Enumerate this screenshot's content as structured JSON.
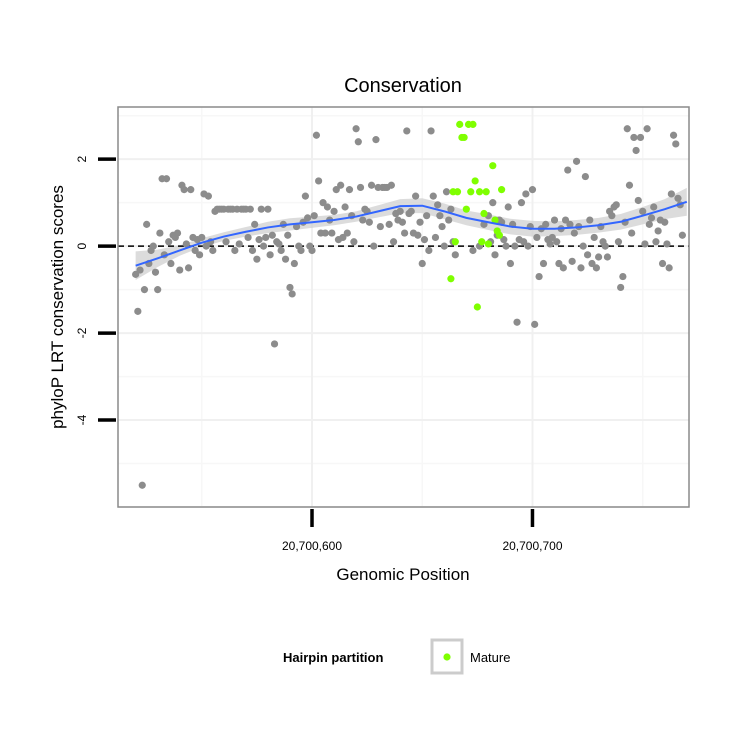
{
  "chart_data": {
    "type": "scatter",
    "title": "Conservation",
    "xlabel": "Genomic Position",
    "ylabel": "phyloP LRT conservation scores",
    "xlim": [
      20700512,
      20700771
    ],
    "ylim": [
      -6.0,
      3.2
    ],
    "x_ticks": [
      20700600,
      20700700
    ],
    "x_tick_labels": [
      "20,700,600",
      "20,700,700"
    ],
    "y_ticks": [
      2,
      0,
      -2,
      -4
    ],
    "y_tick_labels": [
      "2",
      "0",
      "-2",
      "-4"
    ],
    "grid": true,
    "reference_line": {
      "y": 0,
      "style": "dashed"
    },
    "legend": {
      "title": "Hairpin partition",
      "position": "bottom",
      "entries": [
        {
          "label": "Mature",
          "color": "#7fff00"
        }
      ]
    },
    "colors": {
      "other": "#8c8c8c",
      "mature": "#7fff00",
      "smooth": "#3366ff",
      "band": "#d0d0d0"
    },
    "series": [
      {
        "group": "other",
        "points": [
          [
            20700520,
            -0.65
          ],
          [
            20700521,
            -1.5
          ],
          [
            20700522,
            -0.55
          ],
          [
            20700523,
            -5.5
          ],
          [
            20700524,
            -1.0
          ],
          [
            20700525,
            0.5
          ],
          [
            20700526,
            -0.4
          ],
          [
            20700527,
            -0.1
          ],
          [
            20700528,
            0.0
          ],
          [
            20700529,
            -0.6
          ],
          [
            20700530,
            -1.0
          ],
          [
            20700531,
            0.3
          ],
          [
            20700532,
            1.55
          ],
          [
            20700533,
            -0.2
          ],
          [
            20700534,
            1.55
          ],
          [
            20700535,
            0.1
          ],
          [
            20700536,
            -0.4
          ],
          [
            20700537,
            0.25
          ],
          [
            20700538,
            0.2
          ],
          [
            20700539,
            0.3
          ],
          [
            20700540,
            -0.55
          ],
          [
            20700541,
            1.4
          ],
          [
            20700542,
            1.3
          ],
          [
            20700543,
            0.05
          ],
          [
            20700544,
            -0.5
          ],
          [
            20700545,
            1.3
          ],
          [
            20700546,
            0.2
          ],
          [
            20700547,
            -0.1
          ],
          [
            20700548,
            0.15
          ],
          [
            20700549,
            -0.2
          ],
          [
            20700550,
            0.2
          ],
          [
            20700551,
            1.2
          ],
          [
            20700552,
            0.0
          ],
          [
            20700553,
            1.15
          ],
          [
            20700554,
            0.1
          ],
          [
            20700555,
            -0.1
          ],
          [
            20700556,
            0.8
          ],
          [
            20700557,
            0.85
          ],
          [
            20700558,
            0.85
          ],
          [
            20700559,
            0.85
          ],
          [
            20700560,
            0.85
          ],
          [
            20700561,
            0.1
          ],
          [
            20700562,
            0.85
          ],
          [
            20700563,
            0.85
          ],
          [
            20700564,
            0.85
          ],
          [
            20700565,
            -0.1
          ],
          [
            20700566,
            0.85
          ],
          [
            20700567,
            0.05
          ],
          [
            20700568,
            0.85
          ],
          [
            20700569,
            0.85
          ],
          [
            20700570,
            0.85
          ],
          [
            20700571,
            0.2
          ],
          [
            20700572,
            0.85
          ],
          [
            20700573,
            -0.1
          ],
          [
            20700574,
            0.5
          ],
          [
            20700575,
            -0.3
          ],
          [
            20700576,
            0.15
          ],
          [
            20700577,
            0.85
          ],
          [
            20700578,
            0.0
          ],
          [
            20700579,
            0.2
          ],
          [
            20700580,
            0.85
          ],
          [
            20700581,
            -0.2
          ],
          [
            20700582,
            0.25
          ],
          [
            20700583,
            -2.25
          ],
          [
            20700584,
            0.1
          ],
          [
            20700585,
            0.05
          ],
          [
            20700586,
            -0.1
          ],
          [
            20700587,
            0.5
          ],
          [
            20700588,
            -0.3
          ],
          [
            20700589,
            0.25
          ],
          [
            20700590,
            -0.95
          ],
          [
            20700591,
            -1.1
          ],
          [
            20700592,
            -0.4
          ],
          [
            20700593,
            0.45
          ],
          [
            20700594,
            0.0
          ],
          [
            20700595,
            -0.1
          ],
          [
            20700596,
            0.55
          ],
          [
            20700597,
            1.15
          ],
          [
            20700598,
            0.65
          ],
          [
            20700599,
            0.0
          ],
          [
            20700600,
            -0.1
          ],
          [
            20700601,
            0.7
          ],
          [
            20700602,
            2.55
          ],
          [
            20700603,
            1.5
          ],
          [
            20700604,
            0.3
          ],
          [
            20700605,
            1.0
          ],
          [
            20700606,
            0.3
          ],
          [
            20700607,
            0.9
          ],
          [
            20700608,
            0.6
          ],
          [
            20700609,
            0.3
          ],
          [
            20700610,
            0.8
          ],
          [
            20700611,
            1.3
          ],
          [
            20700612,
            0.15
          ],
          [
            20700613,
            1.4
          ],
          [
            20700614,
            0.2
          ],
          [
            20700615,
            0.9
          ],
          [
            20700616,
            0.3
          ],
          [
            20700617,
            1.3
          ],
          [
            20700618,
            0.7
          ],
          [
            20700619,
            0.1
          ],
          [
            20700620,
            2.7
          ],
          [
            20700621,
            2.4
          ],
          [
            20700622,
            1.35
          ],
          [
            20700623,
            0.6
          ],
          [
            20700624,
            0.85
          ],
          [
            20700625,
            0.8
          ],
          [
            20700626,
            0.55
          ],
          [
            20700627,
            1.4
          ],
          [
            20700628,
            0.0
          ],
          [
            20700629,
            2.45
          ],
          [
            20700630,
            1.35
          ],
          [
            20700631,
            0.45
          ],
          [
            20700632,
            1.35
          ],
          [
            20700633,
            1.35
          ],
          [
            20700634,
            1.35
          ],
          [
            20700635,
            0.5
          ],
          [
            20700636,
            1.4
          ],
          [
            20700637,
            0.1
          ],
          [
            20700638,
            0.75
          ],
          [
            20700639,
            0.6
          ],
          [
            20700640,
            0.8
          ],
          [
            20700641,
            0.55
          ],
          [
            20700642,
            0.3
          ],
          [
            20700643,
            2.65
          ],
          [
            20700644,
            0.75
          ],
          [
            20700645,
            0.8
          ],
          [
            20700646,
            0.3
          ],
          [
            20700647,
            1.15
          ],
          [
            20700648,
            0.25
          ],
          [
            20700649,
            0.55
          ],
          [
            20700650,
            -0.4
          ],
          [
            20700651,
            0.15
          ],
          [
            20700652,
            0.7
          ],
          [
            20700653,
            -0.1
          ],
          [
            20700654,
            2.65
          ],
          [
            20700655,
            1.15
          ],
          [
            20700656,
            0.2
          ],
          [
            20700657,
            0.95
          ],
          [
            20700658,
            0.7
          ],
          [
            20700659,
            0.45
          ],
          [
            20700660,
            0.0
          ],
          [
            20700661,
            1.25
          ],
          [
            20700662,
            0.6
          ],
          [
            20700663,
            0.85
          ],
          [
            20700664,
            0.1
          ],
          [
            20700665,
            -0.2
          ],
          [
            20700673,
            -0.1
          ],
          [
            20700676,
            0.0
          ],
          [
            20700678,
            0.5
          ],
          [
            20700680,
            0.7
          ],
          [
            20700681,
            0.1
          ],
          [
            20700682,
            1.0
          ],
          [
            20700683,
            -0.2
          ],
          [
            20700684,
            0.25
          ],
          [
            20700685,
            0.6
          ],
          [
            20700686,
            0.55
          ],
          [
            20700687,
            0.15
          ],
          [
            20700688,
            0.0
          ],
          [
            20700689,
            0.9
          ],
          [
            20700690,
            -0.4
          ],
          [
            20700691,
            0.5
          ],
          [
            20700692,
            0.0
          ],
          [
            20700693,
            -1.75
          ],
          [
            20700694,
            0.15
          ],
          [
            20700695,
            1.0
          ],
          [
            20700696,
            0.1
          ],
          [
            20700697,
            1.2
          ],
          [
            20700698,
            0.0
          ],
          [
            20700699,
            0.45
          ],
          [
            20700700,
            1.3
          ],
          [
            20700701,
            -1.8
          ],
          [
            20700702,
            0.2
          ],
          [
            20700703,
            -0.7
          ],
          [
            20700704,
            0.4
          ],
          [
            20700705,
            -0.4
          ],
          [
            20700706,
            0.5
          ],
          [
            20700707,
            0.15
          ],
          [
            20700708,
            0.05
          ],
          [
            20700709,
            0.2
          ],
          [
            20700710,
            0.6
          ],
          [
            20700711,
            0.1
          ],
          [
            20700712,
            -0.4
          ],
          [
            20700713,
            0.4
          ],
          [
            20700714,
            -0.5
          ],
          [
            20700715,
            0.6
          ],
          [
            20700716,
            1.75
          ],
          [
            20700717,
            0.5
          ],
          [
            20700718,
            -0.35
          ],
          [
            20700719,
            0.3
          ],
          [
            20700720,
            1.95
          ],
          [
            20700721,
            0.45
          ],
          [
            20700722,
            -0.5
          ],
          [
            20700723,
            0.0
          ],
          [
            20700724,
            1.6
          ],
          [
            20700725,
            -0.2
          ],
          [
            20700726,
            0.6
          ],
          [
            20700727,
            -0.4
          ],
          [
            20700728,
            0.2
          ],
          [
            20700729,
            -0.5
          ],
          [
            20700730,
            -0.25
          ],
          [
            20700731,
            0.45
          ],
          [
            20700732,
            0.1
          ],
          [
            20700733,
            0.0
          ],
          [
            20700734,
            -0.25
          ],
          [
            20700735,
            0.8
          ],
          [
            20700736,
            0.7
          ],
          [
            20700737,
            0.9
          ],
          [
            20700738,
            0.95
          ],
          [
            20700739,
            0.1
          ],
          [
            20700740,
            -0.95
          ],
          [
            20700741,
            -0.7
          ],
          [
            20700742,
            0.55
          ],
          [
            20700743,
            2.7
          ],
          [
            20700744,
            1.4
          ],
          [
            20700745,
            0.3
          ],
          [
            20700746,
            2.5
          ],
          [
            20700747,
            2.2
          ],
          [
            20700748,
            1.05
          ],
          [
            20700749,
            2.5
          ],
          [
            20700750,
            0.8
          ],
          [
            20700751,
            0.05
          ],
          [
            20700752,
            2.7
          ],
          [
            20700753,
            0.5
          ],
          [
            20700754,
            0.65
          ],
          [
            20700755,
            0.9
          ],
          [
            20700756,
            0.1
          ],
          [
            20700757,
            0.35
          ],
          [
            20700758,
            0.6
          ],
          [
            20700759,
            -0.4
          ],
          [
            20700760,
            0.55
          ],
          [
            20700761,
            0.05
          ],
          [
            20700762,
            -0.5
          ],
          [
            20700763,
            1.2
          ],
          [
            20700764,
            2.55
          ],
          [
            20700765,
            2.35
          ],
          [
            20700766,
            1.1
          ],
          [
            20700767,
            0.95
          ],
          [
            20700768,
            0.25
          ]
        ]
      },
      {
        "group": "mature",
        "name": "Mature",
        "points": [
          [
            20700663,
            -0.75
          ],
          [
            20700664,
            1.25
          ],
          [
            20700665,
            0.1
          ],
          [
            20700666,
            1.25
          ],
          [
            20700667,
            2.8
          ],
          [
            20700668,
            2.5
          ],
          [
            20700669,
            2.5
          ],
          [
            20700670,
            0.85
          ],
          [
            20700671,
            2.8
          ],
          [
            20700672,
            1.25
          ],
          [
            20700673,
            2.8
          ],
          [
            20700674,
            1.5
          ],
          [
            20700675,
            -1.4
          ],
          [
            20700676,
            1.25
          ],
          [
            20700677,
            0.1
          ],
          [
            20700678,
            0.75
          ],
          [
            20700679,
            1.25
          ],
          [
            20700680,
            0.05
          ],
          [
            20700682,
            1.85
          ],
          [
            20700683,
            0.6
          ],
          [
            20700684,
            0.35
          ],
          [
            20700685,
            0.25
          ],
          [
            20700686,
            1.3
          ]
        ]
      }
    ],
    "smooth": {
      "x": [
        20700520,
        20700530,
        20700540,
        20700550,
        20700560,
        20700570,
        20700580,
        20700590,
        20700600,
        20700610,
        20700620,
        20700630,
        20700640,
        20700650,
        20700660,
        20700670,
        20700680,
        20700690,
        20700700,
        20700710,
        20700720,
        20700730,
        20700740,
        20700750,
        20700760,
        20700770
      ],
      "y": [
        -0.45,
        -0.28,
        -0.1,
        0.08,
        0.22,
        0.33,
        0.43,
        0.5,
        0.55,
        0.6,
        0.68,
        0.8,
        0.92,
        0.93,
        0.8,
        0.65,
        0.55,
        0.45,
        0.4,
        0.4,
        0.43,
        0.48,
        0.56,
        0.7,
        0.85,
        1.02
      ],
      "lower": [
        -0.78,
        -0.48,
        -0.22,
        -0.02,
        0.12,
        0.22,
        0.3,
        0.36,
        0.42,
        0.48,
        0.56,
        0.66,
        0.76,
        0.76,
        0.62,
        0.48,
        0.37,
        0.27,
        0.22,
        0.23,
        0.26,
        0.31,
        0.38,
        0.5,
        0.62,
        0.7
      ],
      "upper": [
        -0.12,
        -0.08,
        0.02,
        0.18,
        0.32,
        0.44,
        0.56,
        0.64,
        0.68,
        0.72,
        0.8,
        0.94,
        1.08,
        1.1,
        0.98,
        0.82,
        0.73,
        0.63,
        0.58,
        0.57,
        0.6,
        0.65,
        0.74,
        0.9,
        1.08,
        1.34
      ]
    }
  }
}
